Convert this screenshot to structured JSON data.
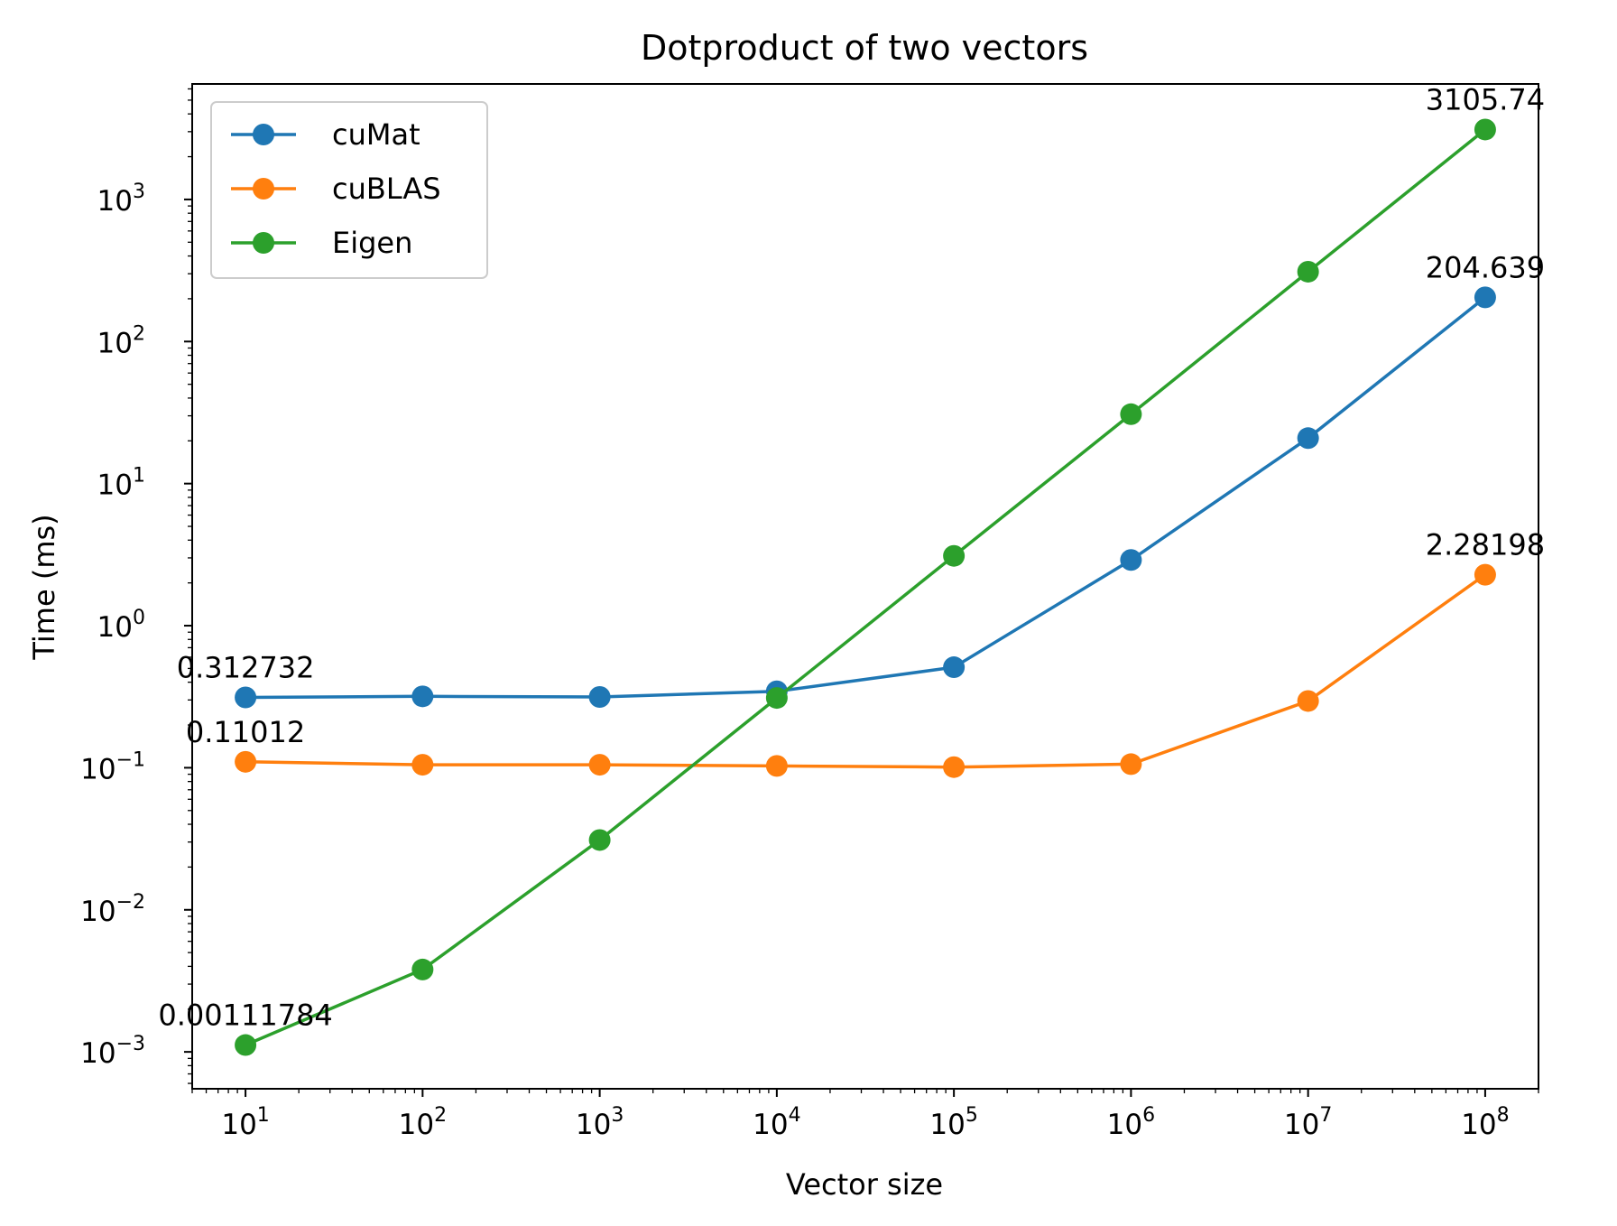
{
  "chart_data": {
    "type": "line",
    "title": "Dotproduct of two vectors",
    "xlabel": "Vector size",
    "ylabel": "Time (ms)",
    "xscale": "log",
    "yscale": "log",
    "xlim": [
      5,
      200000000
    ],
    "ylim": [
      0.00055,
      6500
    ],
    "x": [
      10,
      100,
      1000,
      10000,
      100000,
      1000000,
      10000000,
      100000000
    ],
    "xticks": [
      {
        "value": 10,
        "base": "10",
        "exp": "1"
      },
      {
        "value": 100,
        "base": "10",
        "exp": "2"
      },
      {
        "value": 1000,
        "base": "10",
        "exp": "3"
      },
      {
        "value": 10000,
        "base": "10",
        "exp": "4"
      },
      {
        "value": 100000,
        "base": "10",
        "exp": "5"
      },
      {
        "value": 1000000,
        "base": "10",
        "exp": "6"
      },
      {
        "value": 10000000,
        "base": "10",
        "exp": "7"
      },
      {
        "value": 100000000,
        "base": "10",
        "exp": "8"
      }
    ],
    "yticks": [
      {
        "value": 0.001,
        "base": "10",
        "exp": "−3"
      },
      {
        "value": 0.01,
        "base": "10",
        "exp": "−2"
      },
      {
        "value": 0.1,
        "base": "10",
        "exp": "−1"
      },
      {
        "value": 1,
        "base": "10",
        "exp": "0"
      },
      {
        "value": 10,
        "base": "10",
        "exp": "1"
      },
      {
        "value": 100,
        "base": "10",
        "exp": "2"
      },
      {
        "value": 1000,
        "base": "10",
        "exp": "3"
      }
    ],
    "series": [
      {
        "name": "cuMat",
        "color": "#1f77b4",
        "values": [
          0.312732,
          0.318,
          0.315,
          0.345,
          0.51,
          2.9,
          20.9,
          204.639
        ]
      },
      {
        "name": "cuBLAS",
        "color": "#ff7f0e",
        "values": [
          0.11012,
          0.105,
          0.105,
          0.103,
          0.101,
          0.106,
          0.295,
          2.28198
        ]
      },
      {
        "name": "Eigen",
        "color": "#2ca02c",
        "values": [
          0.00111784,
          0.0038,
          0.031,
          0.31,
          3.1,
          30.8,
          310,
          3105.74
        ]
      }
    ],
    "annotations": [
      {
        "series": "cuMat",
        "x": 10,
        "y": 0.312732,
        "text": "0.312732"
      },
      {
        "series": "cuBLAS",
        "x": 10,
        "y": 0.11012,
        "text": "0.11012"
      },
      {
        "series": "Eigen",
        "x": 10,
        "y": 0.00111784,
        "text": "0.00111784"
      },
      {
        "series": "Eigen",
        "x": 100000000,
        "y": 3105.74,
        "text": "3105.74"
      },
      {
        "series": "cuMat",
        "x": 100000000,
        "y": 204.639,
        "text": "204.639"
      },
      {
        "series": "cuBLAS",
        "x": 100000000,
        "y": 2.28198,
        "text": "2.28198"
      }
    ],
    "legend": {
      "position": "upper-left",
      "entries": [
        "cuMat",
        "cuBLAS",
        "Eigen"
      ]
    },
    "grid": false
  }
}
